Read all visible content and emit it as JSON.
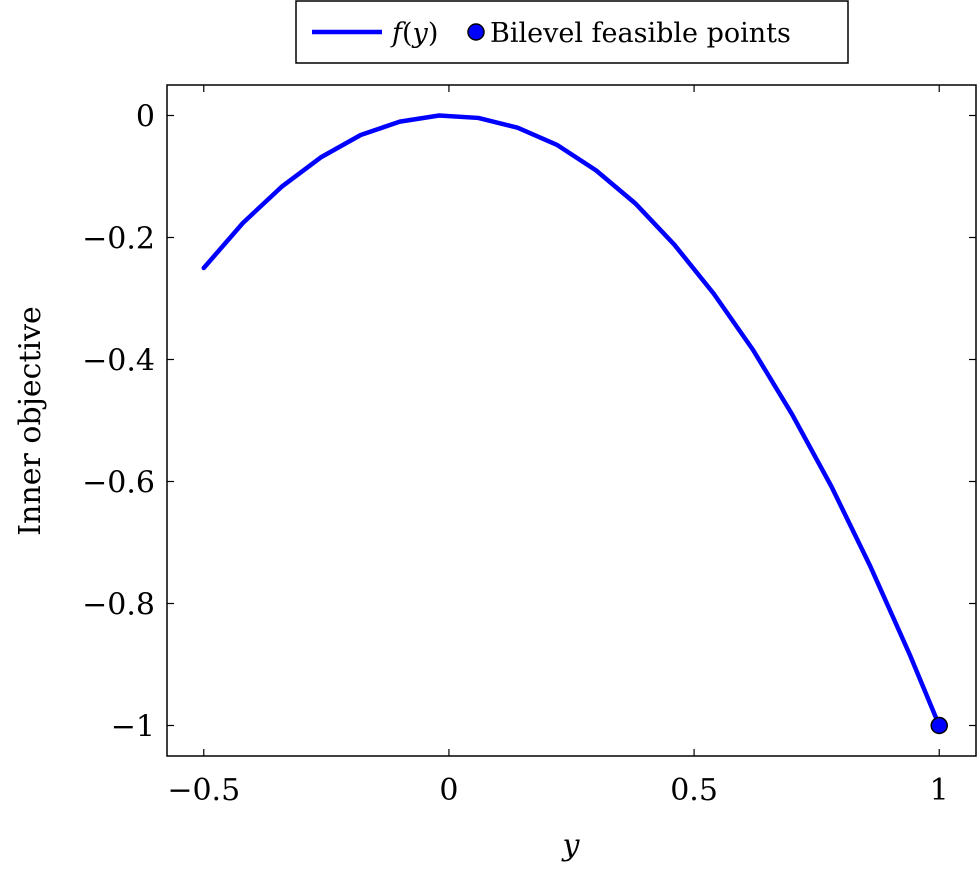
{
  "chart_data": {
    "type": "line",
    "title": "",
    "xlabel": "y",
    "ylabel": "Inner objective",
    "xlim": [
      -0.575,
      1.075
    ],
    "ylim": [
      -1.05,
      0.05
    ],
    "x_ticks": [
      -0.5,
      0,
      0.5,
      1
    ],
    "x_tick_labels": [
      "−0.5",
      "0",
      "0.5",
      "1"
    ],
    "y_ticks": [
      0,
      -0.2,
      -0.4,
      -0.6,
      -0.8,
      -1
    ],
    "y_tick_labels": [
      "0",
      "−0.2",
      "−0.4",
      "−0.6",
      "−0.8",
      "−1"
    ],
    "grid": false,
    "legend_position": "top-center-outside",
    "series": [
      {
        "name": "f(y)",
        "kind": "line",
        "color": "#0000ff",
        "x": [
          -0.5,
          -0.42,
          -0.34,
          -0.26,
          -0.18,
          -0.1,
          -0.02,
          0.06,
          0.14,
          0.22,
          0.3,
          0.38,
          0.46,
          0.54,
          0.62,
          0.7,
          0.78,
          0.86,
          0.94,
          1.0
        ],
        "y": [
          -0.25,
          -0.176,
          -0.116,
          -0.068,
          -0.032,
          -0.01,
          0.0,
          -0.004,
          -0.02,
          -0.048,
          -0.09,
          -0.144,
          -0.212,
          -0.292,
          -0.384,
          -0.49,
          -0.608,
          -0.74,
          -0.884,
          -1.0
        ]
      },
      {
        "name": "Bilevel feasible points",
        "kind": "scatter",
        "color": "#0000ff",
        "edge_color": "#000000",
        "x": [
          1.0
        ],
        "y": [
          -1.0
        ]
      }
    ],
    "legend": {
      "line_label_prefix": "f",
      "line_label_paren_open": "(",
      "line_label_var": "y",
      "line_label_paren_close": ")",
      "marker_label": "Bilevel feasible points"
    }
  }
}
